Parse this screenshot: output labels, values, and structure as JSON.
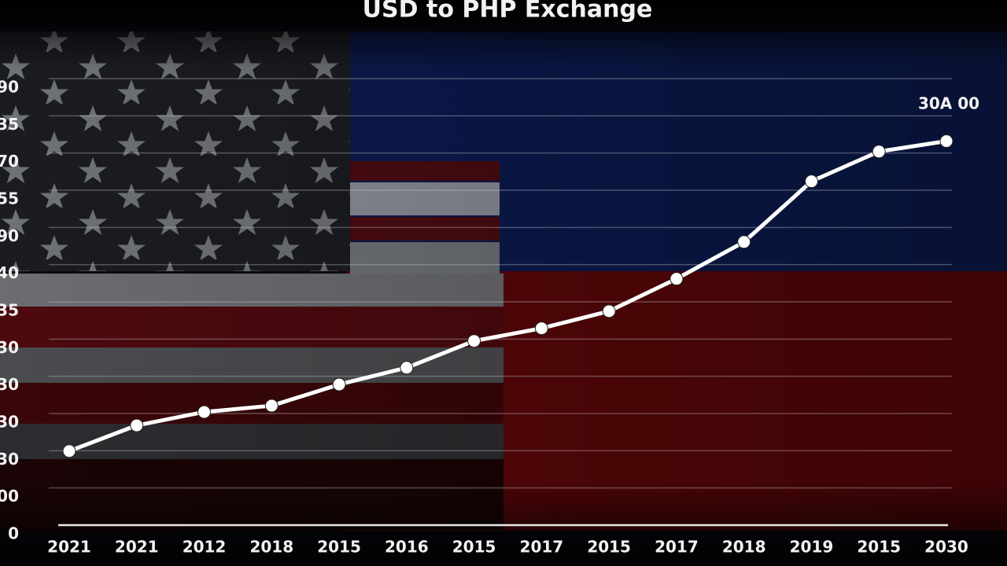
{
  "chart_data": {
    "type": "line",
    "title": "USD to PHP Exchange",
    "annotation": "30A 00",
    "categories": [
      "2021",
      "2021",
      "2012",
      "2018",
      "2015",
      "2016",
      "2015",
      "2017",
      "2015",
      "2017",
      "2018",
      "2019",
      "2015",
      "2030"
    ],
    "series": [
      {
        "color": "#ffffff",
        "values": [
          1.99,
          2.68,
          3.04,
          3.21,
          3.78,
          4.23,
          4.95,
          5.29,
          5.75,
          6.62,
          7.61,
          9.24,
          10.04,
          10.32
        ]
      }
    ],
    "ylim": [
      0,
      12
    ],
    "yticks": [
      {
        "value": 0,
        "label": "0"
      },
      {
        "value": 1,
        "label": "00"
      },
      {
        "value": 2,
        "label": "30"
      },
      {
        "value": 3,
        "label": "30"
      },
      {
        "value": 4,
        "label": "30"
      },
      {
        "value": 5,
        "label": "30"
      },
      {
        "value": 6,
        "label": "35"
      },
      {
        "value": 7,
        "label": "40"
      },
      {
        "value": 8,
        "label": "90"
      },
      {
        "value": 9,
        "label": "55"
      },
      {
        "value": 10,
        "label": "70"
      },
      {
        "value": 11,
        "label": "35"
      },
      {
        "value": 12,
        "label": "90"
      }
    ],
    "grid": true
  }
}
